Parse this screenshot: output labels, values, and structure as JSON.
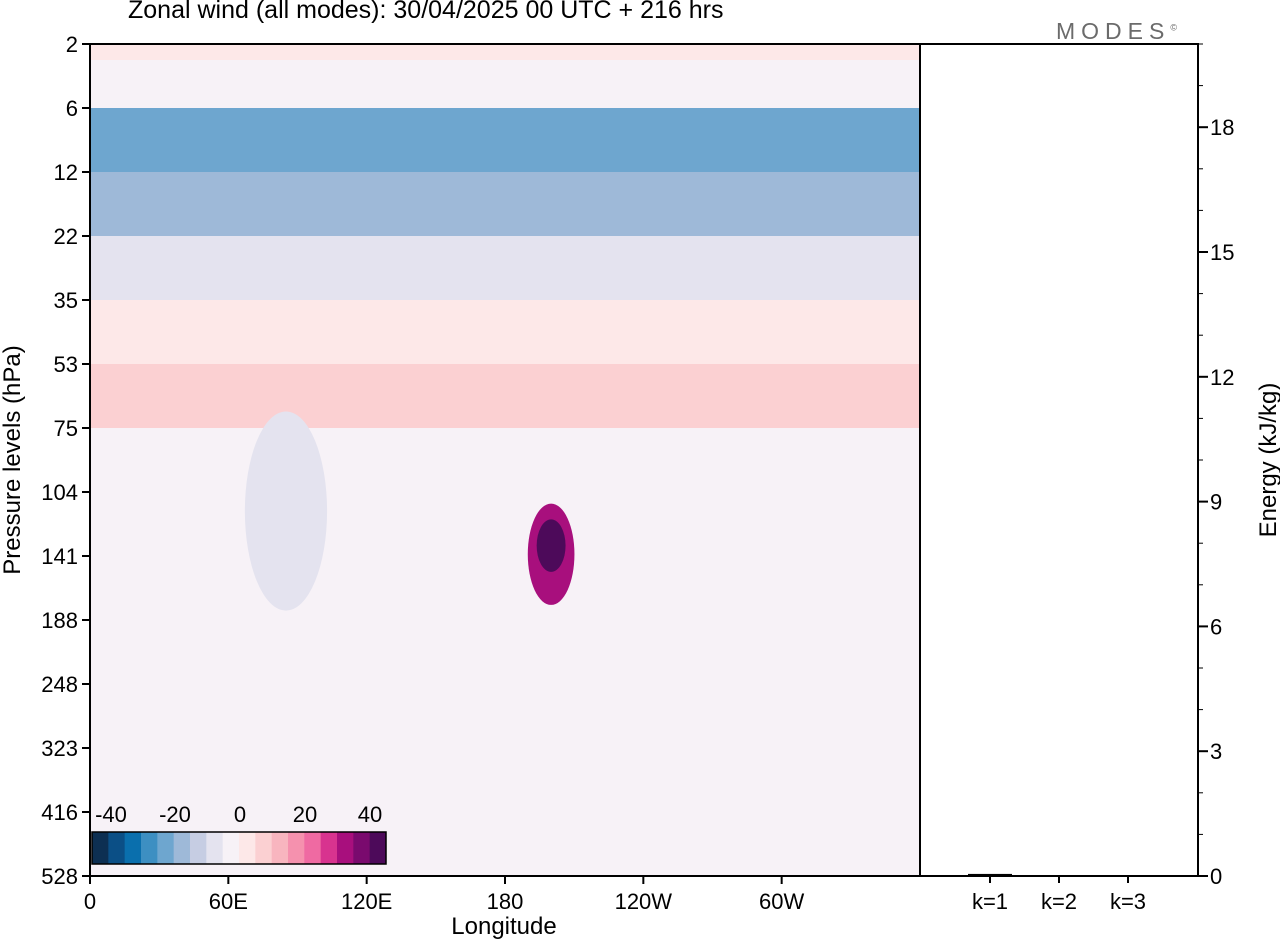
{
  "title": "Zonal wind (all modes):  30/04/2025  00 UTC  + 216 hrs",
  "brand": "MODES",
  "brand_mark": "©",
  "chart_data": [
    {
      "type": "heatmap",
      "xlabel": "Longitude",
      "ylabel": "Pressure levels (hPa)",
      "x_ticks": [
        "0",
        "60E",
        "120E",
        "180",
        "120W",
        "60W"
      ],
      "y_ticks": [
        "2",
        "6",
        "12",
        "22",
        "35",
        "53",
        "75",
        "104",
        "141",
        "188",
        "248",
        "323",
        "416",
        "528"
      ],
      "colorbar": {
        "tick_labels": [
          "-40",
          "-20",
          "0",
          "20",
          "40"
        ],
        "colors": [
          "#0d2f52",
          "#0b4f86",
          "#0a6fad",
          "#3d8fc2",
          "#6ea6cf",
          "#9eb9d8",
          "#c6cde3",
          "#e4e3ef",
          "#f7f2f7",
          "#fde8e8",
          "#fbd0d2",
          "#f8b5bf",
          "#f591ae",
          "#ef6aa2",
          "#d8338f",
          "#a80f7d",
          "#7a0a6e",
          "#4d0a5a"
        ]
      },
      "bands": [
        {
          "from": "2",
          "to": "3",
          "level": 3
        },
        {
          "from": "3",
          "to": "4",
          "level": -1
        },
        {
          "from": "4",
          "to": "6",
          "level": -3
        },
        {
          "from": "6",
          "to": "12",
          "level": -22
        },
        {
          "from": "12",
          "to": "22",
          "level": -16
        },
        {
          "from": "22",
          "to": "35",
          "level": -8
        },
        {
          "from": "35",
          "to": "53",
          "level": 2
        },
        {
          "from": "53",
          "to": "75",
          "level": 6
        },
        {
          "from": "75",
          "to": "528",
          "level": -1
        }
      ],
      "features": [
        {
          "name": "jet maximum",
          "longitude": 200,
          "pressure_hPa": 135,
          "value": 40
        },
        {
          "name": "jet core",
          "longitude": 200,
          "pressure_hPa": 140,
          "value": 30
        },
        {
          "name": "easterly pocket",
          "longitude": 85,
          "pressure_hPa": 115,
          "value": -10
        }
      ]
    },
    {
      "type": "bar",
      "categories": [
        "k=1",
        "k=2",
        "k=3"
      ],
      "values": [
        0.05,
        0.02,
        0.02
      ],
      "ylabel": "Energy (kJ/kg)",
      "y_ticks": [
        0,
        3,
        6,
        9,
        12,
        15,
        18
      ],
      "ylim": [
        0,
        20
      ]
    }
  ]
}
